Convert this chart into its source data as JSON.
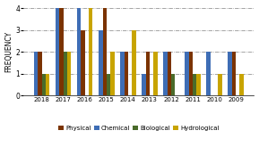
{
  "years": [
    "2018",
    "2017",
    "2016",
    "2015",
    "2014",
    "2013",
    "2012",
    "2011",
    "2010",
    "2009"
  ],
  "chemical": [
    2,
    4,
    4,
    3,
    2,
    1,
    2,
    2,
    2,
    2
  ],
  "physical": [
    2,
    4,
    3,
    4,
    2,
    2,
    2,
    2,
    0,
    2
  ],
  "biological": [
    1,
    2,
    0,
    1,
    0,
    0,
    1,
    1,
    0,
    0
  ],
  "hydrological": [
    1,
    2,
    4,
    2,
    3,
    2,
    0,
    1,
    1,
    1
  ],
  "colors": {
    "physical": "#7B3300",
    "chemical": "#3E6DB5",
    "biological": "#4A6B2A",
    "hydrological": "#C8A400"
  },
  "ylabel": "FREQUENCY",
  "ylim": [
    0,
    4
  ],
  "yticks": [
    0,
    1,
    2,
    3,
    4
  ],
  "bg_color": "#FFFFFF",
  "legend_labels": [
    "Physical",
    "Chemical",
    "Biological",
    "Hydrological"
  ],
  "series_order": [
    "chemical",
    "physical",
    "biological",
    "hydrological"
  ]
}
